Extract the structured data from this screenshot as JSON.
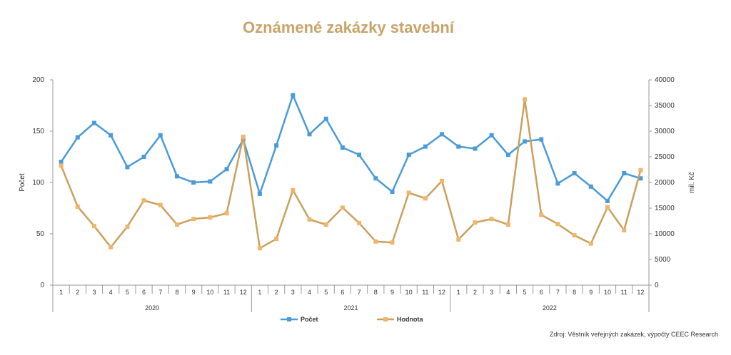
{
  "chart_data": {
    "type": "line",
    "title": "Oznámené zakázky stavební",
    "ylabel": "Počet",
    "y2label": "mil. Kč",
    "ylim": [
      0,
      200
    ],
    "y2lim": [
      0,
      40000
    ],
    "yticks": [
      "0",
      "50",
      "100",
      "150",
      "200"
    ],
    "y2ticks": [
      "0",
      "5000",
      "10000",
      "15000",
      "20000",
      "25000",
      "30000",
      "35000",
      "40000"
    ],
    "months": [
      "1",
      "2",
      "3",
      "4",
      "5",
      "6",
      "7",
      "8",
      "9",
      "10",
      "11",
      "12",
      "1",
      "2",
      "3",
      "4",
      "5",
      "6",
      "7",
      "8",
      "9",
      "10",
      "11",
      "12",
      "1",
      "2",
      "3",
      "4",
      "5",
      "6",
      "7",
      "8",
      "9",
      "10",
      "11",
      "12"
    ],
    "years": [
      "2020",
      "2021",
      "2022"
    ],
    "series": [
      {
        "name": "Počet",
        "axis": "left",
        "color": "#4a9bd6",
        "values": [
          120,
          144,
          158,
          146,
          115,
          125,
          146,
          106,
          100,
          101,
          113,
          142,
          89,
          136,
          185,
          147,
          162,
          134,
          127,
          104,
          91,
          127,
          135,
          147,
          135,
          133,
          146,
          127,
          140,
          142,
          99,
          109,
          96,
          82,
          109,
          104
        ]
      },
      {
        "name": "Hodnota",
        "axis": "right",
        "color": "#c9a05c",
        "marker": "#f0b46a",
        "values": [
          23300,
          15300,
          11500,
          7400,
          11400,
          16500,
          15600,
          11800,
          12900,
          13200,
          14000,
          28900,
          7200,
          9000,
          18500,
          12800,
          11800,
          15100,
          12100,
          8500,
          8300,
          18000,
          16900,
          20300,
          8900,
          12200,
          12900,
          11800,
          36200,
          13700,
          11900,
          9700,
          8100,
          15200,
          10700,
          22400
        ]
      }
    ],
    "legend": "bottom",
    "grid": false
  },
  "source": "Zdroj: Věstník veřejných zakázek, výpočty CEEC Research"
}
